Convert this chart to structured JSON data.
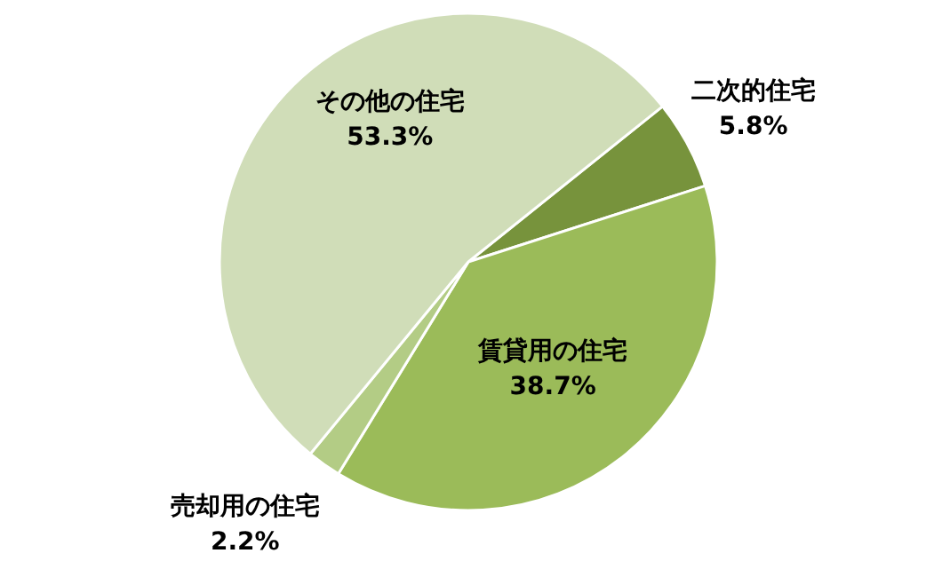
{
  "chart_data": {
    "type": "pie",
    "categories": [
      "二次的住宅",
      "賃貸用の住宅",
      "売却用の住宅",
      "その他の住宅"
    ],
    "values": [
      5.8,
      38.7,
      2.2,
      53.3
    ],
    "colors": [
      "#77933c",
      "#9bbb59",
      "#b3cc85",
      "#d0ddb8"
    ],
    "value_labels": [
      "5.8%",
      "38.7%",
      "2.2%",
      "53.3%"
    ]
  }
}
